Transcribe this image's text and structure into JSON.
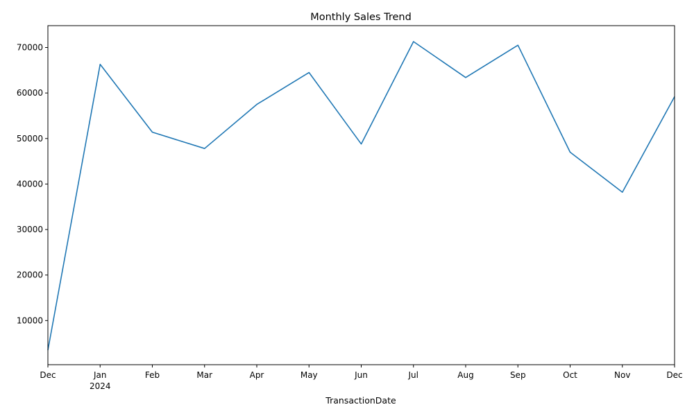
{
  "chart_data": {
    "type": "line",
    "title": "Monthly Sales Trend",
    "xlabel": "TransactionDate",
    "ylabel": "",
    "x_tick_labels": [
      "Dec",
      "Jan",
      "Feb",
      "Mar",
      "Apr",
      "May",
      "Jun",
      "Jul",
      "Aug",
      "Sep",
      "Oct",
      "Nov",
      "Dec"
    ],
    "x_year_label": "2024",
    "y_tick_values": [
      10000,
      20000,
      30000,
      40000,
      50000,
      60000,
      70000
    ],
    "ylim": [
      300,
      74800
    ],
    "grid": false,
    "line_color": "#1f77b4",
    "series": [
      {
        "values": [
          3500,
          66300,
          51400,
          47800,
          57500,
          64500,
          48800,
          71300,
          63400,
          70500,
          47000,
          38200,
          59200
        ]
      }
    ]
  }
}
